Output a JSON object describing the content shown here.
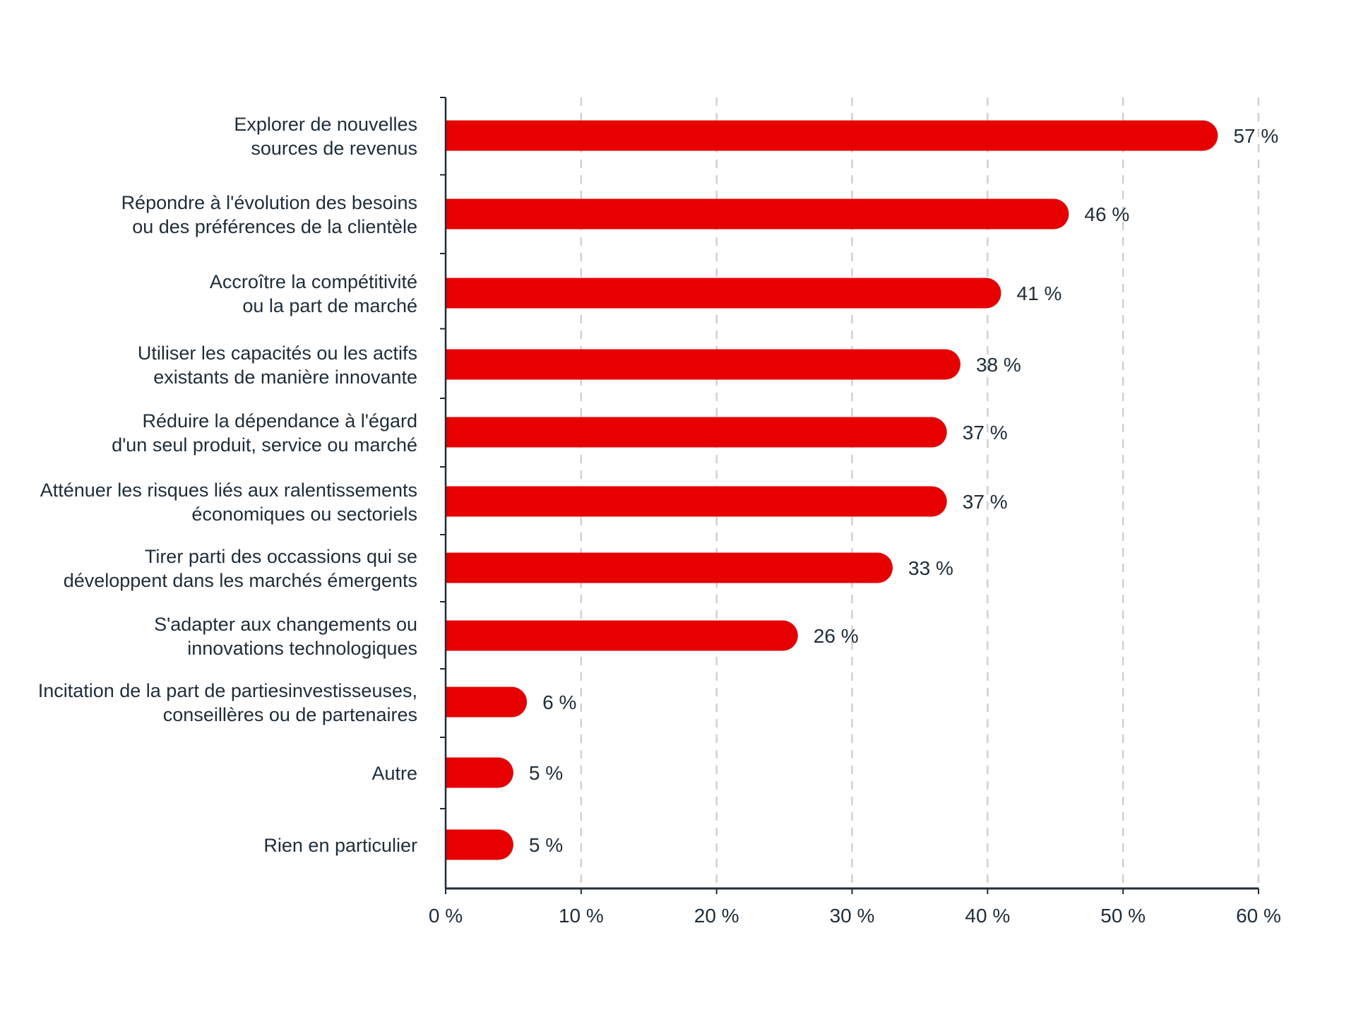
{
  "chart_data": {
    "type": "bar",
    "orientation": "horizontal",
    "title": "",
    "xlabel": "",
    "ylabel": "",
    "categories": [
      [
        "Explorer de nouvelles",
        "sources de revenus"
      ],
      [
        "Répondre à l'évolution des besoins",
        "ou des préférences de la clientèle"
      ],
      [
        "Accroître la compétitivité",
        "ou la part de marché"
      ],
      [
        "Utiliser les capacités ou les actifs",
        "existants de manière innovante"
      ],
      [
        "Réduire la dépendance à l'égard",
        "d'un seul produit, service ou marché"
      ],
      [
        "Atténuer les risques liés aux ralentissements",
        "économiques ou sectoriels"
      ],
      [
        "Tirer parti des occassions qui se",
        "développent dans les marchés émergents"
      ],
      [
        "S'adapter aux changements ou",
        "innovations technologiques"
      ],
      [
        "Incitation de la part de partiesinvestisseuses,",
        "conseillères ou de partenaires"
      ],
      [
        "Autre"
      ],
      [
        "Rien en particulier"
      ]
    ],
    "values": [
      57,
      46,
      41,
      38,
      37,
      37,
      33,
      26,
      6,
      5,
      5
    ],
    "value_labels": [
      "57 %",
      "46 %",
      "41 %",
      "38 %",
      "37 %",
      "37 %",
      "33 %",
      "26 %",
      "6 %",
      "5 %",
      "5 %"
    ],
    "xlim": [
      0,
      60
    ],
    "xticks": [
      0,
      10,
      20,
      30,
      40,
      50,
      60
    ],
    "xtick_labels": [
      "0 %",
      "10 %",
      "20 %",
      "30 %",
      "40 %",
      "50 %",
      "60 %"
    ],
    "grid": "vertical dashed",
    "legend": "none",
    "colors": {
      "bar": "#e60000",
      "text": "#1f2d3a",
      "axis": "#1f2d3a",
      "grid": "#d0d0d0"
    }
  }
}
